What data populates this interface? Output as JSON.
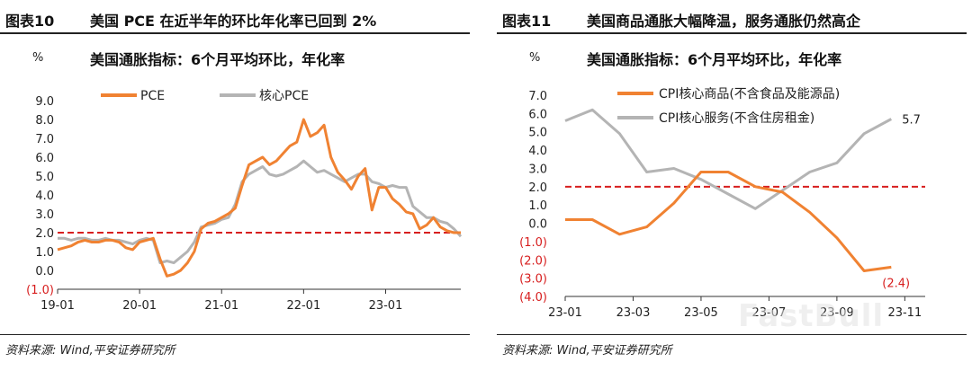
{
  "colors": {
    "orange": "#F08232",
    "gray": "#B4B4B4",
    "red": "#D71E1E",
    "axis": "#333333"
  },
  "left": {
    "fig_num": "图表10",
    "fig_title": "美国 PCE 在近半年的环比年化率已回到 2%",
    "source": "资料来源: Wind,平安证券研究所"
  },
  "right": {
    "fig_num": "图表11",
    "fig_title": "美国商品通胀大幅降温，服务通胀仍然高企",
    "source": "资料来源: Wind,平安证券研究所"
  },
  "watermark": "FastBull",
  "chart_data": [
    {
      "type": "line",
      "title": "美国通胀指标：6个月平均环比，年化率",
      "unit": "%",
      "ylim": [
        -1.0,
        9.0
      ],
      "yticks": [
        "(1.0)",
        "0.0",
        "1.0",
        "2.0",
        "3.0",
        "4.0",
        "5.0",
        "6.0",
        "7.0",
        "8.0",
        "9.0"
      ],
      "xlim": [
        0,
        59
      ],
      "xticks": [
        {
          "t": 0,
          "label": "19-01"
        },
        {
          "t": 12,
          "label": "20-01"
        },
        {
          "t": 24,
          "label": "21-01"
        },
        {
          "t": 36,
          "label": "22-01"
        },
        {
          "t": 48,
          "label": "23-01"
        }
      ],
      "reference_line": 2.0,
      "legend_position": "top-left",
      "series": [
        {
          "name": "PCE",
          "color": "#F08232",
          "values": [
            1.1,
            1.2,
            1.3,
            1.5,
            1.6,
            1.5,
            1.5,
            1.6,
            1.6,
            1.5,
            1.2,
            1.1,
            1.5,
            1.6,
            1.7,
            0.6,
            -0.3,
            -0.2,
            0.0,
            0.4,
            1.0,
            2.2,
            2.5,
            2.6,
            2.8,
            3.0,
            3.3,
            4.5,
            5.6,
            5.8,
            6.0,
            5.6,
            5.8,
            6.2,
            6.6,
            6.8,
            8.0,
            7.1,
            7.3,
            7.7,
            6.0,
            5.2,
            4.8,
            4.3,
            5.0,
            5.4,
            3.2,
            4.4,
            4.4,
            3.8,
            3.5,
            3.1,
            3.0,
            2.2,
            2.4,
            2.8,
            2.3,
            2.1,
            2.0,
            2.0
          ]
        },
        {
          "name": "核心PCE",
          "color": "#B4B4B4",
          "values": [
            1.7,
            1.7,
            1.6,
            1.7,
            1.7,
            1.6,
            1.6,
            1.7,
            1.6,
            1.6,
            1.5,
            1.4,
            1.6,
            1.7,
            1.6,
            0.4,
            0.5,
            0.4,
            0.7,
            1.0,
            1.5,
            2.3,
            2.4,
            2.5,
            2.7,
            2.8,
            3.5,
            4.7,
            5.1,
            5.3,
            5.5,
            5.1,
            5.0,
            5.1,
            5.3,
            5.5,
            5.8,
            5.5,
            5.2,
            5.3,
            5.1,
            4.9,
            4.7,
            4.9,
            5.1,
            5.1,
            4.7,
            4.6,
            4.4,
            4.5,
            4.4,
            4.4,
            3.4,
            3.1,
            2.8,
            2.8,
            2.6,
            2.5,
            2.2,
            1.8
          ]
        }
      ]
    },
    {
      "type": "line",
      "title": "美国通胀指标：6个月平均环比，年化率",
      "unit": "%",
      "ylim": [
        -4.0,
        7.0
      ],
      "yticks": [
        "(4.0)",
        "(3.0)",
        "(2.0)",
        "(1.0)",
        "0.0",
        "1.0",
        "2.0",
        "3.0",
        "4.0",
        "5.0",
        "6.0",
        "7.0"
      ],
      "xlim": [
        0,
        10.6
      ],
      "xticks": [
        {
          "t": 0,
          "label": "23-01"
        },
        {
          "t": 2,
          "label": "23-03"
        },
        {
          "t": 4,
          "label": "23-05"
        },
        {
          "t": 6,
          "label": "23-07"
        },
        {
          "t": 8,
          "label": "23-09"
        },
        {
          "t": 10,
          "label": "23-11"
        }
      ],
      "reference_line": 2.0,
      "legend_position": "top-left",
      "series": [
        {
          "name": "CPI核心商品(不含食品及能源品)",
          "color": "#F08232",
          "values": [
            0.2,
            0.2,
            -0.6,
            -0.2,
            1.1,
            2.8,
            2.8,
            2.0,
            1.7,
            0.6,
            -0.8,
            -2.6,
            -2.4
          ],
          "end_label": "(2.4)"
        },
        {
          "name": "CPI核心服务(不含住房租金)",
          "color": "#B4B4B4",
          "values": [
            5.6,
            6.2,
            4.9,
            2.8,
            3.0,
            2.4,
            1.6,
            0.8,
            1.8,
            2.8,
            3.3,
            4.9,
            5.7
          ],
          "end_label": "5.7"
        }
      ]
    }
  ]
}
